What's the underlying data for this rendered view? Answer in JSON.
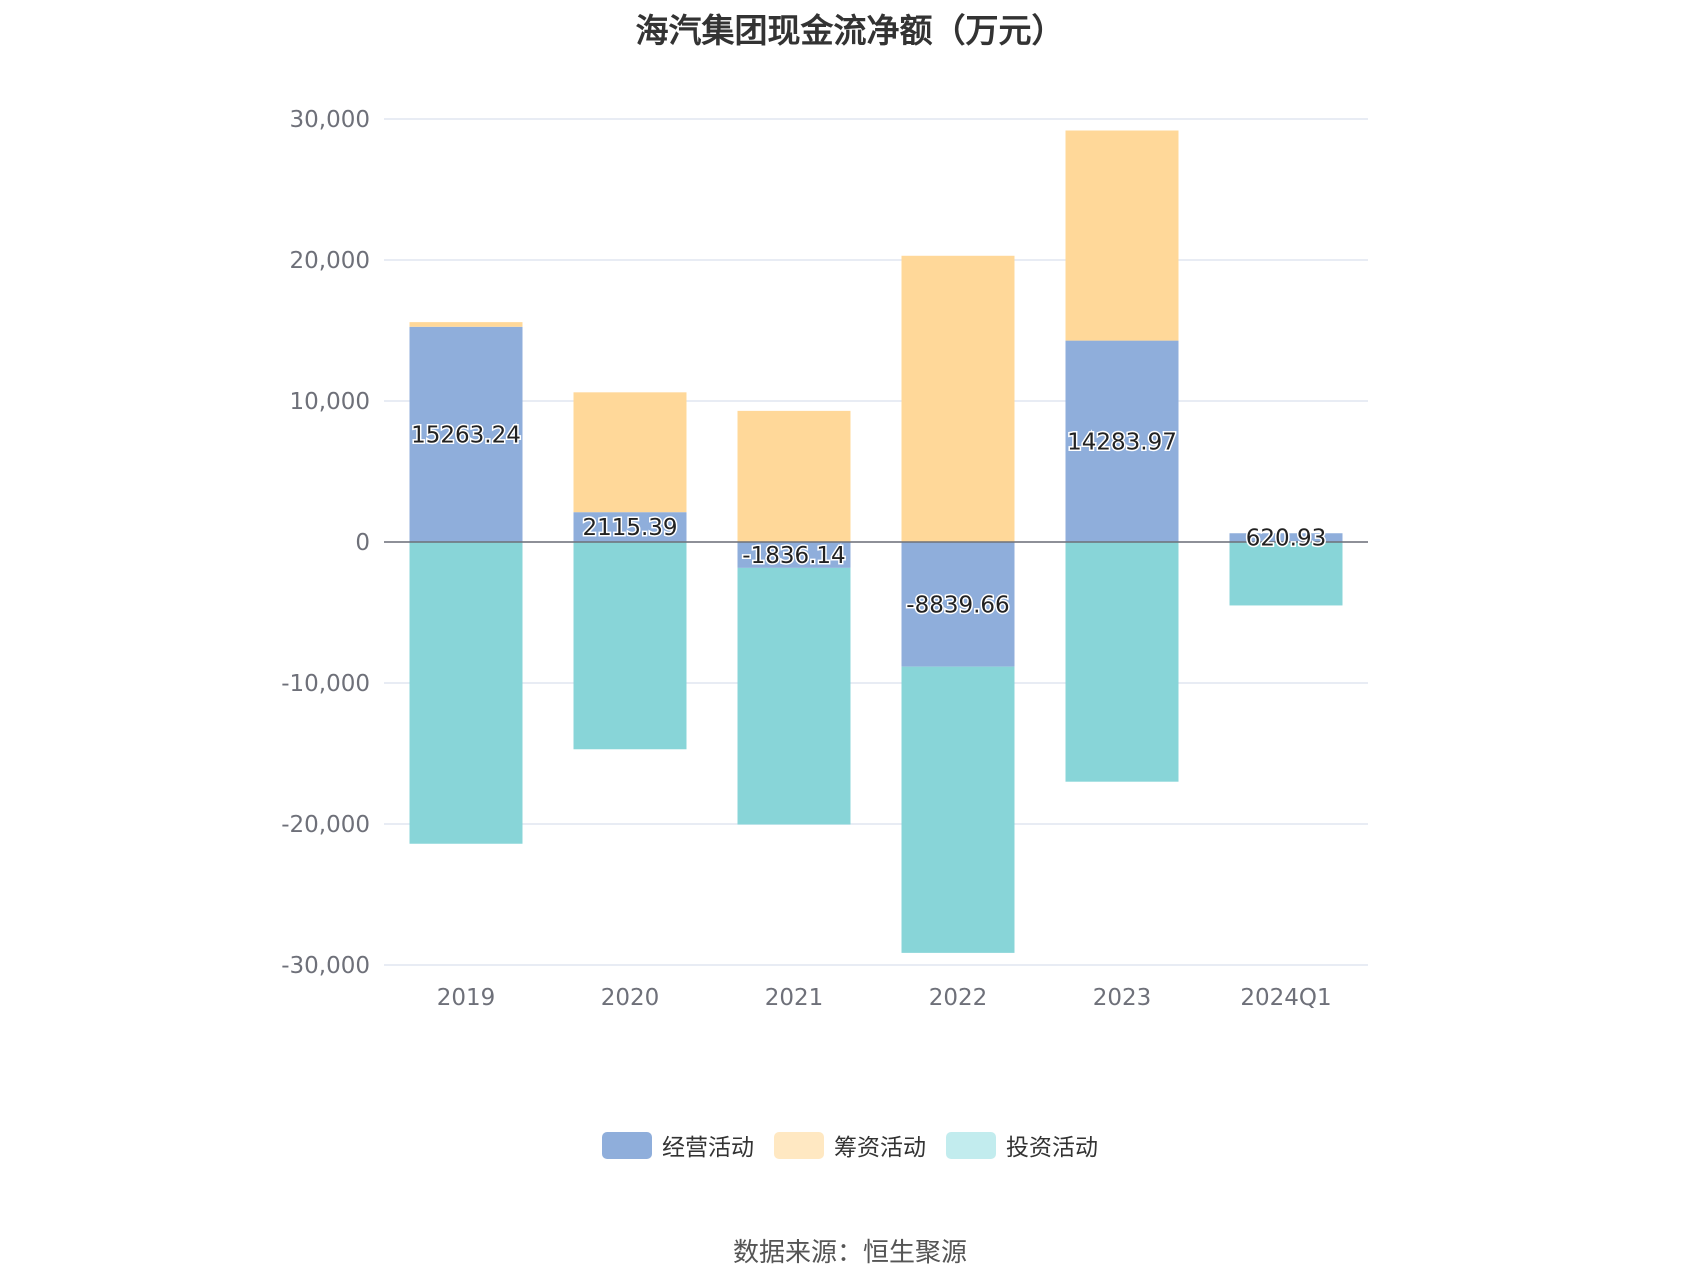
{
  "chart_data": {
    "type": "bar",
    "stacked": true,
    "title": "海汽集团现金流净额（万元）",
    "categories": [
      "2019",
      "2020",
      "2021",
      "2022",
      "2023",
      "2024Q1"
    ],
    "series": [
      {
        "name": "经营活动",
        "color": "#8faedb",
        "values": [
          15263.24,
          2115.39,
          -1836.14,
          -8839.66,
          14283.97,
          620.93
        ],
        "labels": [
          "15263.24",
          "2115.39",
          "-1836.14",
          "-8839.66",
          "14283.97",
          "620.93"
        ]
      },
      {
        "name": "筹资活动",
        "color": "#ffd899",
        "values": [
          330,
          8500,
          9300,
          20300,
          14900,
          0
        ]
      },
      {
        "name": "投资活动",
        "color": "#88d5d8",
        "values": [
          -21400,
          -14700,
          -18200,
          -20300,
          -17000,
          -4500
        ]
      }
    ],
    "ylim": [
      -30000,
      30000
    ],
    "yticks": [
      30000,
      20000,
      10000,
      0,
      -10000,
      -20000,
      -30000
    ],
    "ytick_labels": [
      "30,000",
      "20,000",
      "10,000",
      "0",
      "-10,000",
      "-20,000",
      "-30,000"
    ],
    "xlabel": "",
    "ylabel": "",
    "grid": true,
    "legend_position": "bottom"
  },
  "legend": {
    "items": [
      {
        "label": "经营活动",
        "color": "#8faedb"
      },
      {
        "label": "筹资活动",
        "color": "#ffe8c2"
      },
      {
        "label": "投资活动",
        "color": "#c2ecee"
      }
    ]
  },
  "footer": {
    "source": "数据来源：恒生聚源"
  }
}
